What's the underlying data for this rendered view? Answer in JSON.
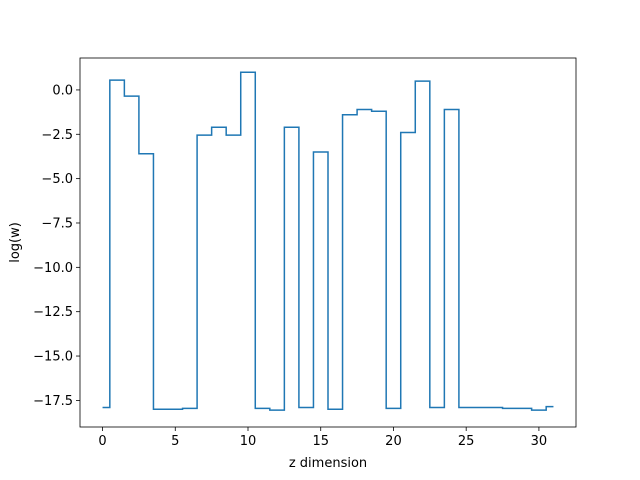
{
  "chart_data": {
    "type": "line",
    "drawstyle": "steps-mid",
    "title": "",
    "xlabel": "z dimension",
    "ylabel": "log(w)",
    "xlim": [
      -1.55,
      32.55
    ],
    "ylim": [
      -19.0,
      1.8
    ],
    "xticks": [
      0,
      5,
      10,
      15,
      20,
      25,
      30
    ],
    "xtick_labels": [
      "0",
      "5",
      "10",
      "15",
      "20",
      "25",
      "30"
    ],
    "yticks": [
      0.0,
      -2.5,
      -5.0,
      -7.5,
      -10.0,
      -12.5,
      -15.0,
      -17.5
    ],
    "ytick_labels": [
      "0.0",
      "−2.5",
      "−5.0",
      "−7.5",
      "−10.0",
      "−12.5",
      "−15.0",
      "−17.5"
    ],
    "grid": false,
    "colors": {
      "line": "#1f77b4",
      "axes": "#000000",
      "background": "#ffffff"
    },
    "series": [
      {
        "x": [
          0,
          1,
          2,
          3,
          4,
          5,
          6,
          7,
          8,
          9,
          10,
          11,
          12,
          13,
          14,
          15,
          16,
          17,
          18,
          19,
          20,
          21,
          22,
          23,
          24,
          25,
          26,
          27,
          28,
          29,
          30,
          31
        ],
        "values": [
          -17.9,
          0.55,
          -0.35,
          -3.6,
          -18.0,
          -18.0,
          -17.95,
          -2.55,
          -2.1,
          -2.55,
          1.0,
          -17.95,
          -18.05,
          -2.1,
          -17.9,
          -3.5,
          -18.0,
          -1.4,
          -1.1,
          -1.2,
          -17.95,
          -2.4,
          0.5,
          -17.9,
          -1.1,
          -17.9,
          -17.9,
          -17.9,
          -17.95,
          -17.95,
          -18.05,
          -17.85
        ]
      }
    ]
  }
}
